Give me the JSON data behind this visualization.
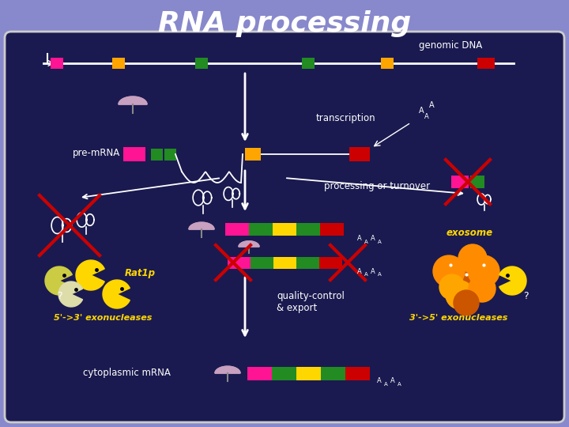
{
  "title": "RNA processing",
  "title_color": "#FFFFFF",
  "title_fontsize": 26,
  "bg_outer": "#8888CC",
  "bg_inner": "#1a1a50",
  "text_color": "#FFFFFF",
  "yellow_text_color": "#FFD700",
  "labels": {
    "genomic_dna": "genomic DNA",
    "transcription": "transcription",
    "pre_mrna": "pre-mRNA",
    "processing": "processing or turnover",
    "exosome": "exosome",
    "rat1p": "Rat1p",
    "quality": "quality-control\n& export",
    "fwd_exo": "5'->3' exonucleases",
    "rev_exo": "3'->5' exonucleases",
    "cytoplasmic": "cytoplasmic mRNA"
  },
  "mrna_strip_colors": [
    "#FF1493",
    "#228B22",
    "#FFD700",
    "#CC0000"
  ],
  "mrna_strip_colors2": [
    "#FF1493",
    "#228B22",
    "#FFD700",
    "#228B22",
    "#CC0000"
  ]
}
